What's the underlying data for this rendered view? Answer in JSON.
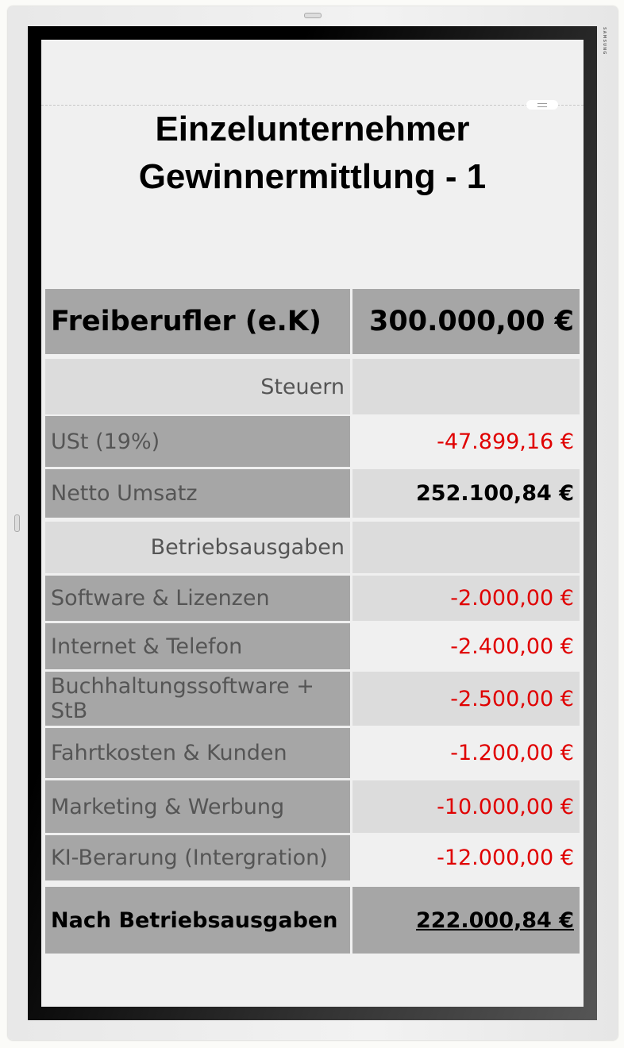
{
  "device": {
    "brand": "SAMSUNG"
  },
  "title": {
    "line1": "Einzelunternehmer",
    "line2": "Gewinnermittlung - 1"
  },
  "table": {
    "header": {
      "label": "Freiberufler (e.K)",
      "value": "300.000,00 €"
    },
    "section_taxes": "Steuern",
    "ust": {
      "label": "USt (19%)",
      "value": "-47.899,16 €"
    },
    "net": {
      "label": "Netto Umsatz",
      "value": "252.100,84 €"
    },
    "section_expenses": "Betriebsausgaben",
    "expenses": [
      {
        "label": "Software & Lizenzen",
        "value": "-2.000,00 €"
      },
      {
        "label": "Internet & Telefon",
        "value": "-2.400,00 €"
      },
      {
        "label": "Buchhaltungssoftware + StB",
        "value": "-2.500,00 €"
      },
      {
        "label": "Fahrtkosten & Kunden",
        "value": "-1.200,00 €"
      },
      {
        "label": "Marketing & Werbung",
        "value": "-10.000,00 €"
      },
      {
        "label": "KI-Berarung (Intergration)",
        "value": "-12.000,00 €"
      }
    ],
    "total": {
      "label": "Nach Betriebsausgaben",
      "value": "222.000,84 €"
    }
  },
  "colors": {
    "negative": "#e00000",
    "header_bg": "#a6a6a6",
    "section_bg": "#dcdcdc"
  }
}
